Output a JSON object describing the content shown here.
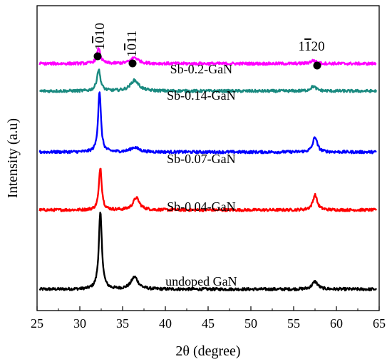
{
  "chart_data": {
    "type": "line",
    "title": "",
    "xlabel": "2θ (degree)",
    "ylabel": "Intensity (a.u)",
    "xlim": [
      25,
      65
    ],
    "x_ticks": [
      "25",
      "30",
      "35",
      "40",
      "45",
      "50",
      "55",
      "60",
      "65"
    ],
    "ylim": [
      0,
      100
    ],
    "grid": false,
    "series": [
      {
        "name": "undoped GaN",
        "color": "#000000",
        "baseline": 7,
        "peaks": [
          {
            "x": 32.4,
            "height": 25.0,
            "width": 0.22
          },
          {
            "x": 36.4,
            "height": 4.0,
            "width": 0.5
          },
          {
            "x": 57.5,
            "height": 2.5,
            "width": 0.4
          }
        ]
      },
      {
        "name": "Sb-0.04-GaN",
        "color": "#ff0000",
        "baseline": 33,
        "peaks": [
          {
            "x": 32.4,
            "height": 14.0,
            "width": 0.2
          },
          {
            "x": 36.6,
            "height": 4.0,
            "width": 0.45
          },
          {
            "x": 57.5,
            "height": 5.0,
            "width": 0.3
          }
        ]
      },
      {
        "name": "Sb-0.07-GaN",
        "color": "#0000ff",
        "baseline": 52,
        "peaks": [
          {
            "x": 32.3,
            "height": 20.0,
            "width": 0.2
          },
          {
            "x": 36.4,
            "height": 1.5,
            "width": 0.6
          },
          {
            "x": 57.5,
            "height": 5.0,
            "width": 0.3
          }
        ]
      },
      {
        "name": "Sb-0.14-GaN",
        "color": "#1a8a80",
        "baseline": 72,
        "peaks": [
          {
            "x": 32.2,
            "height": 7.0,
            "width": 0.25
          },
          {
            "x": 36.4,
            "height": 3.5,
            "width": 0.6
          },
          {
            "x": 57.3,
            "height": 1.5,
            "width": 0.4
          }
        ]
      },
      {
        "name": "Sb-0.2-GaN",
        "color": "#ff00ff",
        "baseline": 81,
        "peaks": [
          {
            "x": 32.2,
            "height": 5.0,
            "width": 0.25
          },
          {
            "x": 36.4,
            "height": 2.0,
            "width": 0.55
          },
          {
            "x": 57.3,
            "height": 1.0,
            "width": 0.4
          }
        ]
      }
    ],
    "annotations": [
      {
        "label": "1010",
        "overline_digits": [
          2,
          3
        ],
        "x": 32.2,
        "marker": "dot"
      },
      {
        "label": "1011",
        "overline_digits": [
          2,
          3
        ],
        "x": 36.3,
        "marker": "dot"
      },
      {
        "label": "1120",
        "overline_digits": [
          2,
          3
        ],
        "x": 57.3,
        "marker": "dot"
      }
    ]
  }
}
